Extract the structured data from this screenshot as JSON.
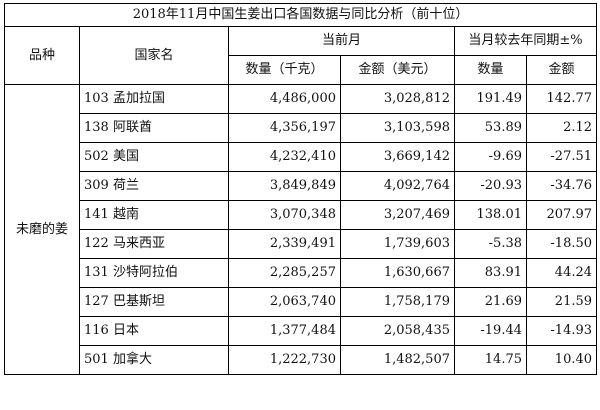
{
  "title": "2018年11月中国生姜出口各国数据与同比分析（前十位）",
  "headers": {
    "variety": "品种",
    "country": "国家名",
    "current_month": "当前月",
    "yoy": "当月较去年同期±%",
    "quantity": "数量（千克）",
    "amount": "金额（美元）",
    "quantity2": "数量",
    "amount2": "金额"
  },
  "variety": "未磨的姜",
  "rows": [
    {
      "country": "103 孟加拉国",
      "quantity": "4,486,000",
      "amount": "3,028,812",
      "yoy_quantity": "191.49",
      "yoy_amount": "142.77"
    },
    {
      "country": "138 阿联酋",
      "quantity": "4,356,197",
      "amount": "3,103,598",
      "yoy_quantity": "53.89",
      "yoy_amount": "2.12"
    },
    {
      "country": "502 美国",
      "quantity": "4,232,410",
      "amount": "3,669,142",
      "yoy_quantity": "-9.69",
      "yoy_amount": "-27.51"
    },
    {
      "country": "309 荷兰",
      "quantity": "3,849,849",
      "amount": "4,092,764",
      "yoy_quantity": "-20.93",
      "yoy_amount": "-34.76"
    },
    {
      "country": "141 越南",
      "quantity": "3,070,348",
      "amount": "3,207,469",
      "yoy_quantity": "138.01",
      "yoy_amount": "207.97"
    },
    {
      "country": "122 马来西亚",
      "quantity": "2,339,491",
      "amount": "1,739,603",
      "yoy_quantity": "-5.38",
      "yoy_amount": "-18.50"
    },
    {
      "country": "131 沙特阿拉伯",
      "quantity": "2,285,257",
      "amount": "1,630,667",
      "yoy_quantity": "83.91",
      "yoy_amount": "44.24"
    },
    {
      "country": "127 巴基斯坦",
      "quantity": "2,063,740",
      "amount": "1,758,179",
      "yoy_quantity": "21.69",
      "yoy_amount": "21.59"
    },
    {
      "country": "116 日本",
      "quantity": "1,377,484",
      "amount": "2,058,435",
      "yoy_quantity": "-19.44",
      "yoy_amount": "-14.93"
    },
    {
      "country": "501 加拿大",
      "quantity": "1,222,730",
      "amount": "1,482,507",
      "yoy_quantity": "14.75",
      "yoy_amount": "10.40"
    }
  ]
}
